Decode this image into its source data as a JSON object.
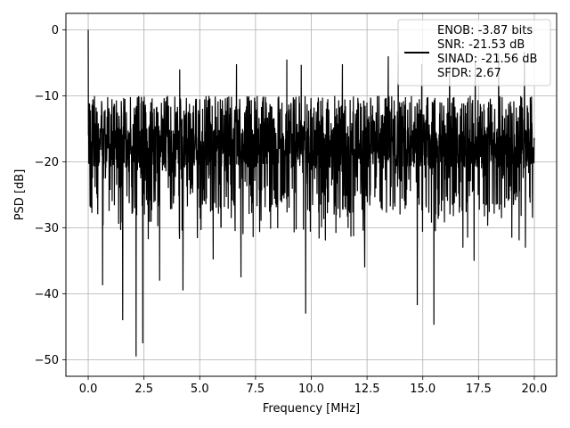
{
  "chart_data": {
    "type": "line",
    "title": "",
    "xlabel": "Frequency [MHz]",
    "ylabel": "PSD [dB]",
    "xlim": [
      -1.0,
      21.0
    ],
    "ylim": [
      -52.5,
      2.5
    ],
    "x_ticks": [
      0.0,
      2.5,
      5.0,
      7.5,
      10.0,
      12.5,
      15.0,
      17.5,
      20.0
    ],
    "x_tick_labels": [
      "0.0",
      "2.5",
      "5.0",
      "7.5",
      "10.0",
      "12.5",
      "15.0",
      "17.5",
      "20.0"
    ],
    "y_ticks": [
      0,
      -10,
      -20,
      -30,
      -40,
      -50
    ],
    "y_tick_labels": [
      "0",
      "−10",
      "−20",
      "−30",
      "−40",
      "−50"
    ],
    "grid": true,
    "legend_position": "top-right",
    "legend_entries": [
      "ENOB: -3.87 bits",
      "SNR: -21.53 dB",
      "SINAD: -21.56 dB",
      "SFDR: 2.67"
    ],
    "series": [
      {
        "color": "#000000",
        "x_range": [
          0.0,
          20.0
        ],
        "description_values": "noise-like spectrum, mostly between about -25 and -10 dB, peak 0 dB at 0 MHz",
        "peak": {
          "x": 0.0,
          "y": 0.0
        },
        "notable_dips": [
          {
            "x": 1.55,
            "y": -44.0
          },
          {
            "x": 2.15,
            "y": -49.5
          },
          {
            "x": 2.45,
            "y": -47.5
          },
          {
            "x": 4.25,
            "y": -39.5
          },
          {
            "x": 9.75,
            "y": -43.0
          },
          {
            "x": 14.75,
            "y": -41.7
          },
          {
            "x": 15.5,
            "y": -44.7
          },
          {
            "x": 12.4,
            "y": -36.0
          },
          {
            "x": 6.85,
            "y": -37.5
          },
          {
            "x": 0.65,
            "y": -38.7
          },
          {
            "x": 3.2,
            "y": -38.0
          },
          {
            "x": 5.6,
            "y": -34.8
          },
          {
            "x": 17.3,
            "y": -35.0
          },
          {
            "x": 18.4,
            "y": -34.0
          },
          {
            "x": 19.6,
            "y": -33.0
          },
          {
            "x": 16.8,
            "y": -33.0
          }
        ],
        "notable_peaks": [
          {
            "x": 6.65,
            "y": -5.2
          },
          {
            "x": 8.9,
            "y": -4.5
          },
          {
            "x": 11.4,
            "y": -5.2
          },
          {
            "x": 13.45,
            "y": -4.0
          },
          {
            "x": 13.9,
            "y": -3.5
          },
          {
            "x": 18.4,
            "y": -3.6
          },
          {
            "x": 19.55,
            "y": -3.3
          },
          {
            "x": 16.2,
            "y": -5.5
          },
          {
            "x": 14.95,
            "y": -5.2
          },
          {
            "x": 9.55,
            "y": -5.3
          },
          {
            "x": 4.1,
            "y": -6.0
          },
          {
            "x": 17.35,
            "y": -5.0
          }
        ]
      }
    ]
  }
}
